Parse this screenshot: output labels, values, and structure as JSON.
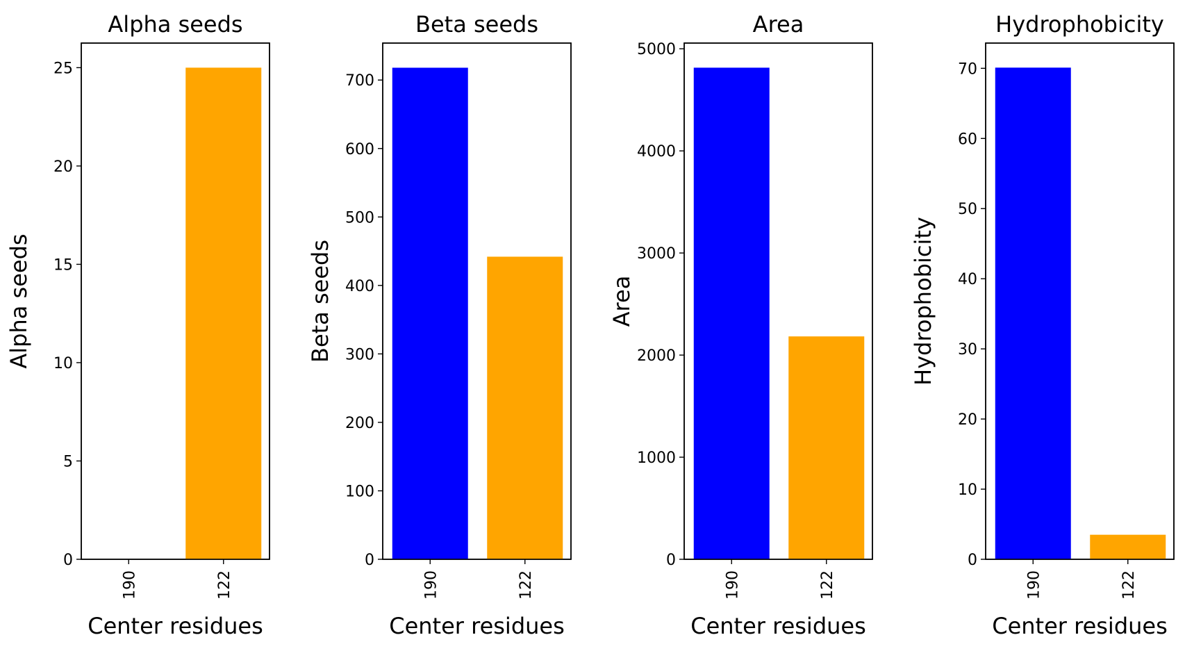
{
  "figure": {
    "background": "#ffffff"
  },
  "chart_data": [
    {
      "type": "bar",
      "title": "Alpha seeds",
      "xlabel": "Center residues",
      "ylabel": "Alpha seeds",
      "categories": [
        "190",
        "122"
      ],
      "values": [
        0,
        25
      ],
      "colors": [
        "#0000ff",
        "#ffa500"
      ],
      "ylim": [
        0,
        26.25
      ],
      "yticks": [
        0,
        5,
        10,
        15,
        20,
        25
      ],
      "grid": false
    },
    {
      "type": "bar",
      "title": "Beta seeds",
      "xlabel": "Center residues",
      "ylabel": "Beta seeds",
      "categories": [
        "190",
        "122"
      ],
      "values": [
        718,
        442
      ],
      "colors": [
        "#0000ff",
        "#ffa500"
      ],
      "ylim": [
        0,
        754
      ],
      "yticks": [
        0,
        100,
        200,
        300,
        400,
        500,
        600,
        700
      ],
      "grid": false
    },
    {
      "type": "bar",
      "title": "Area",
      "xlabel": "Center residues",
      "ylabel": "Area",
      "categories": [
        "190",
        "122"
      ],
      "values": [
        4815,
        2183
      ],
      "colors": [
        "#0000ff",
        "#ffa500"
      ],
      "ylim": [
        0,
        5056
      ],
      "yticks": [
        0,
        1000,
        2000,
        3000,
        4000,
        5000
      ],
      "grid": false
    },
    {
      "type": "bar",
      "title": "Hydrophobicity",
      "xlabel": "Center residues",
      "ylabel": "Hydrophobicity",
      "categories": [
        "190",
        "122"
      ],
      "values": [
        70.1,
        3.5
      ],
      "colors": [
        "#0000ff",
        "#ffa500"
      ],
      "ylim": [
        0,
        73.6
      ],
      "yticks": [
        0,
        10,
        20,
        30,
        40,
        50,
        60,
        70
      ],
      "grid": false
    }
  ]
}
